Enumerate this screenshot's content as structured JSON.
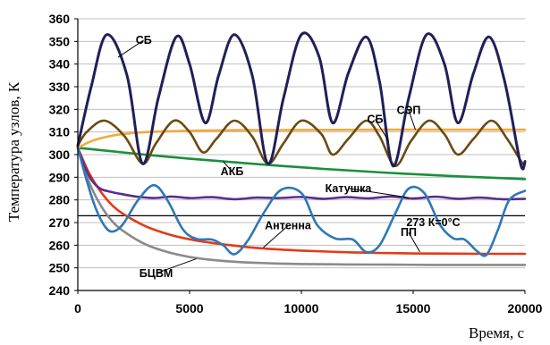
{
  "chart_data": {
    "type": "line",
    "title": "",
    "xlabel": "Время, с",
    "ylabel": "Температура узлов, К",
    "xlim": [
      0,
      20000
    ],
    "ylim": [
      240,
      360
    ],
    "x_ticks": [
      0,
      5000,
      10000,
      15000,
      20000
    ],
    "y_ticks": [
      240,
      250,
      260,
      270,
      280,
      290,
      300,
      310,
      320,
      330,
      340,
      350,
      360
    ],
    "grid": "horizontal",
    "legend": "none",
    "reference_line": {
      "y": 273,
      "label": "273 К=0°С",
      "color": "#000000"
    },
    "series": [
      {
        "name": "СБ",
        "color": "#1f1f5a",
        "x": [
          0,
          600,
          1300,
          2200,
          2900,
          3600,
          4400,
          5000,
          5700,
          6300,
          7000,
          7800,
          8500,
          9200,
          10000,
          10800,
          11400,
          12100,
          12900,
          13500,
          14100,
          14800,
          15600,
          16400,
          17000,
          17700,
          18400,
          19100,
          19800,
          20000
        ],
        "y": [
          304,
          330,
          353,
          335,
          296,
          325,
          352,
          340,
          314,
          335,
          353,
          335,
          296,
          325,
          353,
          343,
          314,
          336,
          352,
          332,
          295,
          325,
          353,
          340,
          314,
          336,
          352,
          332,
          296,
          297
        ]
      },
      {
        "name": "СБ",
        "color": "#6b4a12",
        "x": [
          0,
          400,
          1200,
          2100,
          2900,
          3500,
          4300,
          5000,
          5600,
          6200,
          7000,
          7800,
          8500,
          9200,
          10000,
          10900,
          11400,
          12100,
          12900,
          13500,
          14200,
          14900,
          15700,
          16400,
          17000,
          17700,
          18500,
          19200,
          19900,
          20000
        ],
        "y": [
          304,
          310,
          315,
          308,
          296,
          305,
          315,
          310,
          301,
          307,
          315,
          308,
          296,
          305,
          315,
          309,
          300,
          307,
          315,
          308,
          295,
          306,
          315,
          309,
          300,
          307,
          315,
          307,
          296,
          297
        ]
      },
      {
        "name": "СЭП",
        "color": "#f2a93b",
        "x": [
          0,
          500,
          1000,
          1800,
          2800,
          4000,
          5500,
          7500,
          10000,
          14000,
          20000
        ],
        "y": [
          303,
          305.5,
          307.2,
          308.8,
          309.8,
          310.3,
          310.6,
          310.8,
          310.9,
          311,
          311
        ]
      },
      {
        "name": "АКБ",
        "color": "#1a8f3c",
        "x": [
          0,
          1000,
          2000,
          3000,
          4000,
          5000,
          6000,
          7000,
          8000,
          9000,
          10000,
          11000,
          12000,
          13000,
          14000,
          15000,
          16000,
          17000,
          18000,
          19000,
          20000
        ],
        "y": [
          303,
          302,
          301,
          300,
          299.1,
          298.2,
          297.4,
          296.6,
          295.8,
          295.1,
          294.4,
          293.7,
          293.1,
          292.5,
          291.9,
          291.4,
          290.9,
          290.4,
          290,
          289.6,
          289.2
        ]
      },
      {
        "name": "Катушка",
        "color": "#5b2d8c",
        "x": [
          0,
          300,
          600,
          1000,
          1500,
          2000,
          2600,
          3400,
          4200,
          5000,
          6000,
          7000,
          8000,
          9000,
          10000,
          11000,
          12000,
          13000,
          14000,
          15000,
          16000,
          17000,
          18000,
          19000,
          20000
        ],
        "y": [
          303,
          295,
          289,
          285,
          283.5,
          282.5,
          281.5,
          280.8,
          281.5,
          280.8,
          281.2,
          280.3,
          281,
          280.8,
          281.3,
          280.5,
          281.2,
          280.7,
          281.5,
          280.6,
          281.4,
          280.5,
          281,
          280.3,
          280.5
        ]
      },
      {
        "name": "Антенна",
        "color": "#2f78b5",
        "x": [
          0,
          300,
          700,
          1100,
          1500,
          2000,
          2700,
          3400,
          4000,
          4700,
          5300,
          6000,
          6500,
          7000,
          7600,
          8300,
          9100,
          10000,
          10700,
          11500,
          12300,
          12900,
          13500,
          14200,
          14800,
          15500,
          16200,
          16800,
          17300,
          17900,
          18300,
          18800,
          19300,
          20000
        ],
        "y": [
          303,
          292,
          279,
          270,
          266,
          269,
          280,
          286.5,
          280,
          267,
          262.8,
          262.5,
          260,
          256,
          262,
          274,
          284.5,
          283,
          269,
          263,
          262.5,
          257,
          260,
          274,
          285,
          283,
          269,
          263,
          262.5,
          257,
          256,
          267,
          280,
          284
        ]
      },
      {
        "name": "ПП",
        "color": "#e23b1a",
        "x": [
          0,
          500,
          1000,
          1500,
          2000,
          3000,
          4000,
          5000,
          6000,
          7000,
          8000,
          9000,
          10000,
          12000,
          14000,
          16000,
          18000,
          20000
        ],
        "y": [
          303,
          292,
          284,
          278,
          274,
          268.5,
          265,
          262.6,
          261,
          259.8,
          258.8,
          258.1,
          257.6,
          256.9,
          256.5,
          256.3,
          256.2,
          256.2
        ]
      },
      {
        "name": "БЦВМ",
        "color": "#8a8a8a",
        "x": [
          0,
          500,
          1000,
          1500,
          2000,
          3000,
          4000,
          5000,
          6000,
          7000,
          8000,
          9000,
          10000,
          12000,
          14000,
          16000,
          18000,
          20000
        ],
        "y": [
          303,
          288,
          278,
          271,
          266.5,
          260.5,
          257,
          254.8,
          253.5,
          252.7,
          252.2,
          251.9,
          251.7,
          251.5,
          251.4,
          251.3,
          251.3,
          251.3
        ]
      }
    ],
    "annotations": [
      {
        "text": "СБ",
        "x": 2950,
        "y": 349,
        "point_x": 1800,
        "point_y": 343
      },
      {
        "text": "СБ",
        "x": 13300,
        "y": 314,
        "point_x": 13900,
        "point_y": 306
      },
      {
        "text": "СЭП",
        "x": 14800,
        "y": 318,
        "point_x": 15100,
        "point_y": 311
      },
      {
        "text": "АКБ",
        "x": 6900,
        "y": 291,
        "point_x": 6500,
        "point_y": 297
      },
      {
        "text": "Катушка",
        "x": 12100,
        "y": 283.5,
        "point_x": 14800,
        "point_y": 281
      },
      {
        "text": "Антенна",
        "x": 9400,
        "y": 267,
        "point_x": 8300,
        "point_y": 259
      },
      {
        "text": "ПП",
        "x": 14800,
        "y": 264,
        "point_x": 15300,
        "point_y": 257
      },
      {
        "text": "БЦВМ",
        "x": 3500,
        "y": 246,
        "point_x": 5300,
        "point_y": 254
      },
      {
        "text": "273 К=0°С",
        "x": 15900,
        "y": 268.5
      }
    ]
  }
}
